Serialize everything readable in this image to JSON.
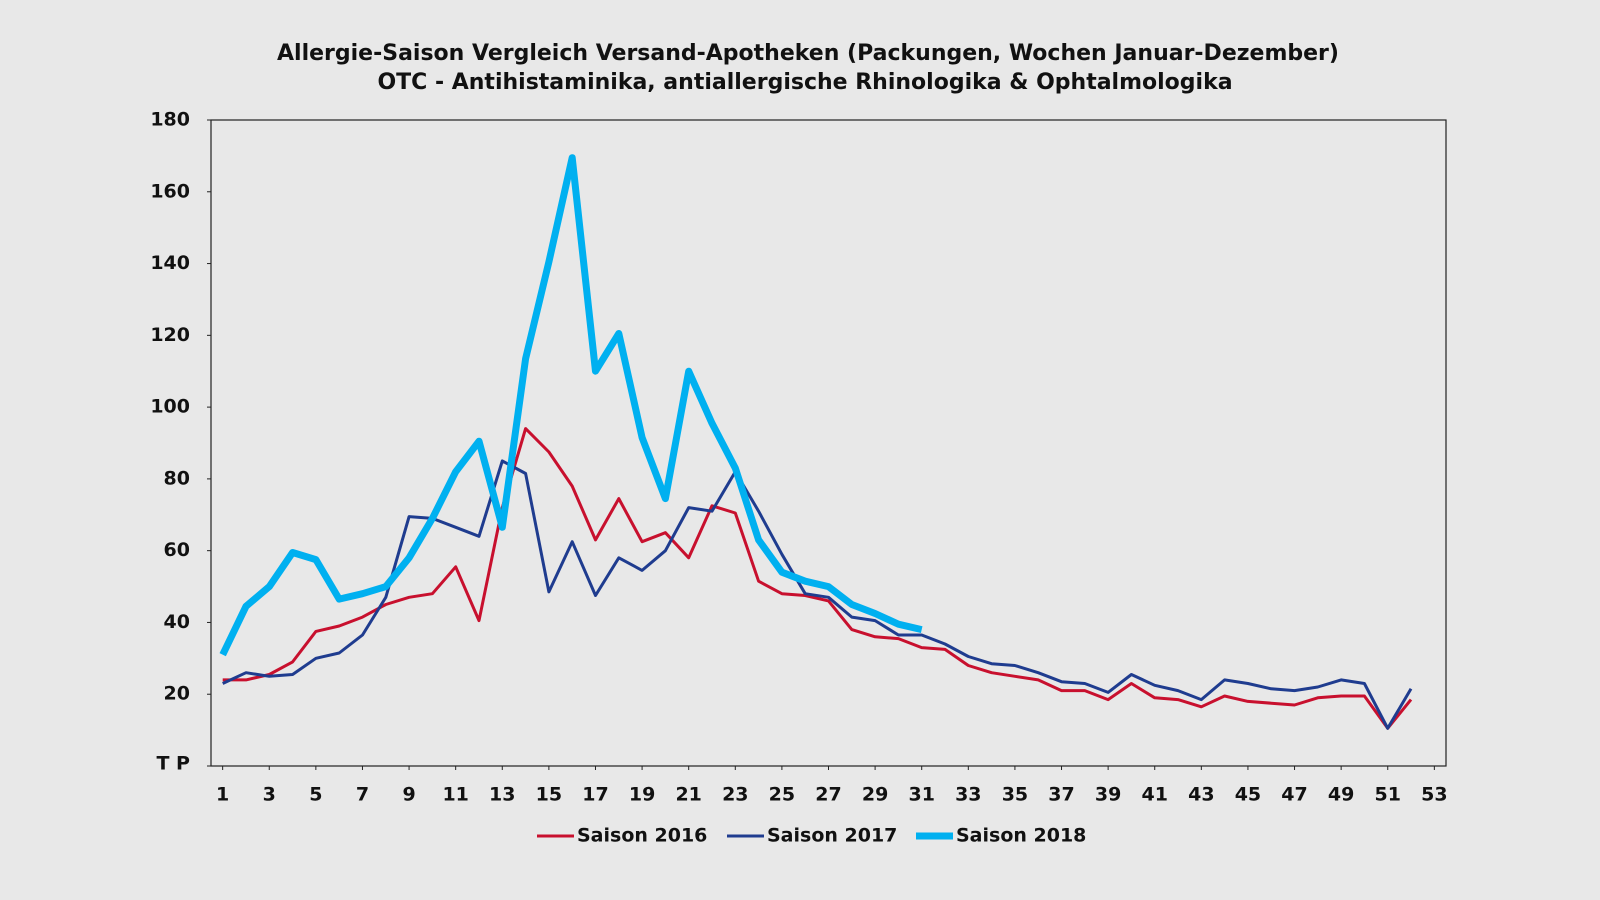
{
  "chart_data": {
    "type": "line",
    "title": "Allergie-Saison Vergleich Versand-Apotheken (Packungen, Wochen Januar-Dezember)",
    "subtitle": "OTC - Antihistaminika, antiallergische Rhinologika & Ophtalmologika",
    "x": [
      1,
      2,
      3,
      4,
      5,
      6,
      7,
      8,
      9,
      10,
      11,
      12,
      13,
      14,
      15,
      16,
      17,
      18,
      19,
      20,
      21,
      22,
      23,
      24,
      25,
      26,
      27,
      28,
      29,
      30,
      31,
      32,
      33,
      34,
      35,
      36,
      37,
      38,
      39,
      40,
      41,
      42,
      43,
      44,
      45,
      46,
      47,
      48,
      49,
      50,
      51,
      52
    ],
    "series": [
      {
        "name": "Saison 2016",
        "color": "#c8102e",
        "width": 3,
        "values": [
          24,
          24,
          25.5,
          29,
          37.5,
          39,
          41.5,
          45,
          47,
          48,
          55.5,
          40.5,
          72,
          94,
          87.5,
          78,
          63,
          74.5,
          62.5,
          65,
          58,
          72.5,
          70.5,
          51.5,
          48,
          47.5,
          46,
          38,
          36,
          35.5,
          33,
          32.5,
          28,
          26,
          25,
          24,
          21,
          21,
          18.5,
          23,
          19,
          18.5,
          16.5,
          19.5,
          18,
          17.5,
          17,
          19,
          19.5,
          19.5,
          10.5,
          18.5
        ]
      },
      {
        "name": "Saison 2017",
        "color": "#1f3c8f",
        "width": 3,
        "values": [
          23,
          26,
          25,
          25.5,
          30,
          31.5,
          36.5,
          47,
          69.5,
          69,
          66.5,
          64,
          85,
          81.5,
          48.5,
          62.5,
          47.5,
          58,
          54.5,
          60,
          72,
          71,
          82,
          71,
          59,
          48,
          47,
          41.5,
          40.5,
          36.5,
          36.5,
          34,
          30.5,
          28.5,
          28,
          26,
          23.5,
          23,
          20.5,
          25.5,
          22.5,
          21,
          18.5,
          24,
          23,
          21.5,
          21,
          22,
          24,
          23,
          10.5,
          21.5
        ]
      },
      {
        "name": "Saison 2018",
        "color": "#00b0f0",
        "width": 7,
        "values": [
          31,
          44.5,
          50,
          59.5,
          57.5,
          46.5,
          48,
          50,
          58,
          69,
          82,
          90.5,
          66.5,
          113.5,
          140.5,
          169.5,
          110,
          120.5,
          91.5,
          74.5,
          110,
          95.5,
          83,
          63,
          54,
          51.5,
          50,
          45,
          42.5,
          39.5,
          38,
          null,
          null,
          null,
          null,
          null,
          null,
          null,
          null,
          null,
          null,
          null,
          null,
          null,
          null,
          null,
          null,
          null,
          null,
          null,
          null,
          null
        ]
      }
    ],
    "xlim": [
      0.5,
      53.5
    ],
    "xticks": [
      1,
      3,
      5,
      7,
      9,
      11,
      13,
      15,
      17,
      19,
      21,
      23,
      25,
      27,
      29,
      31,
      33,
      35,
      37,
      39,
      41,
      43,
      45,
      47,
      49,
      51,
      53
    ],
    "ylim": [
      0,
      180
    ],
    "yticks": [
      {
        "value": 0,
        "label": "T P"
      },
      20,
      40,
      60,
      80,
      100,
      120,
      140,
      160,
      180
    ],
    "grid": false,
    "legend": "bottom"
  }
}
